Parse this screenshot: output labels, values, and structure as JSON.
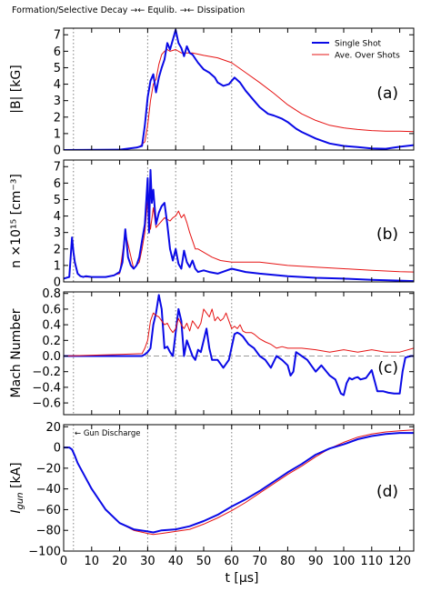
{
  "header": {
    "text": "Formation/Selective Decay →← Equlib. →← Dissipation"
  },
  "legend": {
    "single_shot": "Single Shot",
    "average": "Ave. Over Shots"
  },
  "colors": {
    "single_shot": "#0a0ae6",
    "average": "#e61414",
    "phase_lines": "#808080",
    "zero_line": "#9a9a9a"
  },
  "x_axis": {
    "label": "t [μs]",
    "range": [
      0,
      125
    ],
    "ticks": [
      0,
      10,
      20,
      30,
      40,
      50,
      60,
      70,
      80,
      90,
      100,
      110,
      120
    ]
  },
  "phase_boundaries_us": [
    3.5,
    30,
    40,
    60
  ],
  "chart_data": [
    {
      "type": "line",
      "tag": "(a)",
      "ylabel": "|B| [kG]",
      "ylim": [
        0,
        7.4
      ],
      "yticks": [
        0,
        1,
        2,
        3,
        4,
        5,
        6,
        7
      ],
      "series": [
        {
          "name": "Single Shot",
          "x": [
            0,
            20,
            26,
            28,
            29,
            30,
            31,
            32,
            33,
            34,
            35,
            36,
            37,
            38,
            39,
            40,
            41,
            42,
            43,
            44,
            45,
            46,
            48,
            50,
            52,
            54,
            55,
            57,
            59,
            61,
            63,
            65,
            68,
            70,
            73,
            75,
            78,
            80,
            83,
            85,
            90,
            95,
            100,
            105,
            110,
            115,
            120,
            125
          ],
          "y": [
            0,
            0.02,
            0.15,
            0.25,
            1.5,
            3.2,
            4.2,
            4.6,
            3.5,
            4.4,
            5.0,
            5.5,
            6.5,
            6.1,
            6.7,
            7.3,
            6.5,
            6.2,
            5.7,
            6.3,
            5.9,
            5.8,
            5.3,
            4.9,
            4.7,
            4.4,
            4.1,
            3.9,
            4.0,
            4.4,
            4.1,
            3.6,
            3.0,
            2.6,
            2.2,
            2.1,
            1.9,
            1.7,
            1.3,
            1.1,
            0.7,
            0.4,
            0.25,
            0.18,
            0.1,
            0.08,
            0.2,
            0.3
          ]
        },
        {
          "name": "Ave. Over Shots",
          "x": [
            0,
            20,
            27,
            29,
            30,
            31,
            32,
            33,
            34,
            35,
            36,
            37,
            38,
            40,
            42,
            44,
            46,
            50,
            55,
            60,
            65,
            70,
            75,
            80,
            85,
            90,
            95,
            100,
            105,
            110,
            115,
            120,
            125
          ],
          "y": [
            0,
            0,
            0.2,
            0.5,
            1.5,
            3.0,
            4.0,
            4.3,
            5.2,
            5.8,
            6.0,
            6.1,
            6.0,
            6.1,
            5.9,
            5.9,
            5.9,
            5.75,
            5.6,
            5.3,
            4.7,
            4.1,
            3.45,
            2.75,
            2.2,
            1.8,
            1.5,
            1.35,
            1.25,
            1.18,
            1.15,
            1.15,
            1.12
          ]
        }
      ]
    },
    {
      "type": "line",
      "tag": "(b)",
      "ylabel": "n ×10¹⁵ [cm⁻³]",
      "ylim": [
        0,
        7.4
      ],
      "yticks": [
        0,
        1,
        2,
        3,
        4,
        5,
        6,
        7
      ],
      "series": [
        {
          "name": "Single Shot",
          "x": [
            0,
            2,
            2.5,
            3,
            3.5,
            4,
            5,
            6,
            7,
            8,
            10,
            15,
            18,
            20,
            21,
            22,
            23,
            24,
            25,
            26,
            27,
            28,
            29,
            30,
            30.5,
            31,
            31.5,
            32,
            33,
            34,
            35,
            36,
            37,
            38,
            39,
            40,
            41,
            42,
            43,
            44,
            45,
            46,
            47,
            48,
            50,
            52,
            55,
            60,
            65,
            70,
            80,
            90,
            100,
            110,
            120,
            125
          ],
          "y": [
            0.2,
            0.3,
            1.5,
            2.7,
            1.8,
            1.2,
            0.5,
            0.35,
            0.3,
            0.35,
            0.3,
            0.3,
            0.4,
            0.6,
            1.2,
            3.2,
            1.5,
            1.0,
            0.8,
            1.0,
            1.5,
            2.5,
            3.5,
            6.3,
            3.0,
            6.8,
            4.8,
            5.6,
            3.5,
            4.2,
            4.6,
            4.8,
            3.5,
            2.0,
            1.3,
            2.0,
            1.1,
            0.8,
            1.9,
            1.2,
            0.9,
            1.3,
            0.8,
            0.6,
            0.7,
            0.6,
            0.5,
            0.8,
            0.6,
            0.5,
            0.35,
            0.25,
            0.2,
            0.12,
            0.08,
            0.05
          ]
        },
        {
          "name": "Ave. Over Shots",
          "x": [
            0,
            2,
            2.5,
            3,
            3.5,
            4,
            5,
            6,
            8,
            10,
            15,
            20,
            22,
            25,
            27,
            28,
            29,
            30,
            31,
            32,
            33,
            34,
            35,
            36,
            37,
            38,
            39,
            40,
            41,
            42,
            43,
            44,
            45,
            46,
            47,
            48,
            50,
            53,
            56,
            60,
            70,
            80,
            90,
            100,
            110,
            120,
            125
          ],
          "y": [
            0.2,
            0.3,
            1.4,
            2.5,
            1.7,
            1.1,
            0.5,
            0.35,
            0.3,
            0.3,
            0.3,
            0.5,
            3.0,
            0.8,
            1.2,
            2.0,
            3.0,
            5.0,
            3.2,
            4.5,
            3.3,
            3.5,
            3.7,
            3.9,
            3.8,
            3.7,
            3.9,
            4.0,
            4.3,
            3.9,
            4.1,
            3.6,
            3.0,
            2.5,
            2.0,
            2.0,
            1.8,
            1.5,
            1.3,
            1.2,
            1.2,
            1.0,
            0.9,
            0.8,
            0.7,
            0.62,
            0.6
          ]
        }
      ]
    },
    {
      "type": "line",
      "tag": "(c)",
      "ylabel": "Mach Number",
      "ylim": [
        -0.75,
        0.82
      ],
      "yticks": [
        -0.6,
        -0.4,
        -0.2,
        0.0,
        0.2,
        0.4,
        0.6,
        0.8
      ],
      "series": [
        {
          "name": "Single Shot",
          "x": [
            0,
            10,
            20,
            28,
            29,
            30,
            31,
            32,
            33,
            34,
            35,
            36,
            37,
            38,
            39,
            40,
            41,
            42,
            43,
            44,
            45,
            46,
            47,
            48,
            49,
            50,
            51,
            52,
            53,
            54,
            55,
            57,
            59,
            61,
            62,
            63,
            64,
            66,
            68,
            70,
            72,
            74,
            76,
            78,
            80,
            81,
            82,
            83,
            85,
            87,
            88,
            90,
            92,
            95,
            97,
            99,
            100,
            101,
            102,
            103,
            104,
            105,
            106,
            108,
            110,
            112,
            114,
            116,
            118,
            119,
            120,
            121,
            122,
            124,
            125
          ],
          "y": [
            0.0,
            0.0,
            0.0,
            0.0,
            0.02,
            0.05,
            0.1,
            0.4,
            0.55,
            0.78,
            0.6,
            0.1,
            0.12,
            0.05,
            0.0,
            0.3,
            0.6,
            0.45,
            0.0,
            0.2,
            0.1,
            0.0,
            -0.05,
            0.08,
            0.05,
            0.2,
            0.35,
            0.1,
            -0.05,
            -0.05,
            -0.05,
            -0.15,
            -0.05,
            0.28,
            0.3,
            0.28,
            0.25,
            0.15,
            0.1,
            0.0,
            -0.05,
            -0.15,
            0.0,
            -0.05,
            -0.12,
            -0.25,
            -0.2,
            0.05,
            0.0,
            -0.05,
            -0.1,
            -0.2,
            -0.12,
            -0.25,
            -0.3,
            -0.48,
            -0.5,
            -0.35,
            -0.28,
            -0.3,
            -0.28,
            -0.27,
            -0.3,
            -0.28,
            -0.18,
            -0.45,
            -0.45,
            -0.47,
            -0.48,
            -0.48,
            -0.48,
            -0.2,
            -0.02,
            0.0,
            0.0
          ]
        },
        {
          "name": "Ave. Over Shots",
          "x": [
            0,
            10,
            20,
            28,
            29,
            30,
            31,
            32,
            33,
            34,
            35,
            36,
            37,
            38,
            39,
            40,
            41,
            42,
            43,
            44,
            45,
            46,
            47,
            48,
            49,
            50,
            51,
            52,
            53,
            54,
            55,
            56,
            57,
            58,
            59,
            60,
            61,
            62,
            63,
            64,
            65,
            66,
            67,
            68,
            70,
            72,
            74,
            76,
            78,
            80,
            85,
            90,
            95,
            100,
            105,
            110,
            115,
            120,
            125
          ],
          "y": [
            0.0,
            0.01,
            0.02,
            0.03,
            0.1,
            0.2,
            0.45,
            0.55,
            0.52,
            0.5,
            0.45,
            0.4,
            0.42,
            0.35,
            0.3,
            0.35,
            0.48,
            0.4,
            0.35,
            0.42,
            0.32,
            0.45,
            0.4,
            0.35,
            0.42,
            0.6,
            0.55,
            0.5,
            0.6,
            0.45,
            0.5,
            0.45,
            0.48,
            0.55,
            0.45,
            0.35,
            0.38,
            0.35,
            0.4,
            0.32,
            0.3,
            0.3,
            0.3,
            0.28,
            0.22,
            0.18,
            0.15,
            0.1,
            0.12,
            0.1,
            0.1,
            0.08,
            0.05,
            0.08,
            0.05,
            0.08,
            0.05,
            0.05,
            0.1
          ]
        }
      ]
    },
    {
      "type": "line",
      "tag": "(d)",
      "ylabel": "I_gun [kA]",
      "ylim": [
        -100,
        22
      ],
      "yticks": [
        -100,
        -80,
        -60,
        -40,
        -20,
        0,
        20
      ],
      "annotation": "← Gun Discharge",
      "series": [
        {
          "name": "Single Shot",
          "x": [
            0,
            2,
            3,
            4,
            5,
            8,
            10,
            15,
            20,
            25,
            30,
            32,
            35,
            40,
            45,
            50,
            55,
            60,
            65,
            70,
            75,
            80,
            85,
            90,
            95,
            100,
            105,
            110,
            115,
            120,
            125
          ],
          "y": [
            0,
            0,
            -2,
            -8,
            -15,
            -30,
            -40,
            -60,
            -73,
            -79,
            -81,
            -82,
            -80,
            -79,
            -76,
            -71,
            -65,
            -57,
            -50,
            -42,
            -33,
            -24,
            -16,
            -7,
            -1,
            3,
            8,
            11,
            13,
            14,
            14
          ]
        },
        {
          "name": "Ave. Over Shots",
          "x": [
            0,
            2,
            3,
            4,
            5,
            8,
            10,
            15,
            20,
            25,
            30,
            32,
            35,
            40,
            45,
            50,
            55,
            60,
            65,
            70,
            75,
            80,
            85,
            90,
            95,
            100,
            105,
            110,
            115,
            120,
            125
          ],
          "y": [
            0,
            0,
            -2,
            -8,
            -15,
            -30,
            -40,
            -60,
            -73,
            -80,
            -83,
            -84,
            -83,
            -81,
            -79,
            -74,
            -68,
            -61,
            -53,
            -44,
            -35,
            -26,
            -18,
            -9,
            -1,
            5,
            10,
            13,
            15,
            16,
            17
          ]
        }
      ]
    }
  ]
}
